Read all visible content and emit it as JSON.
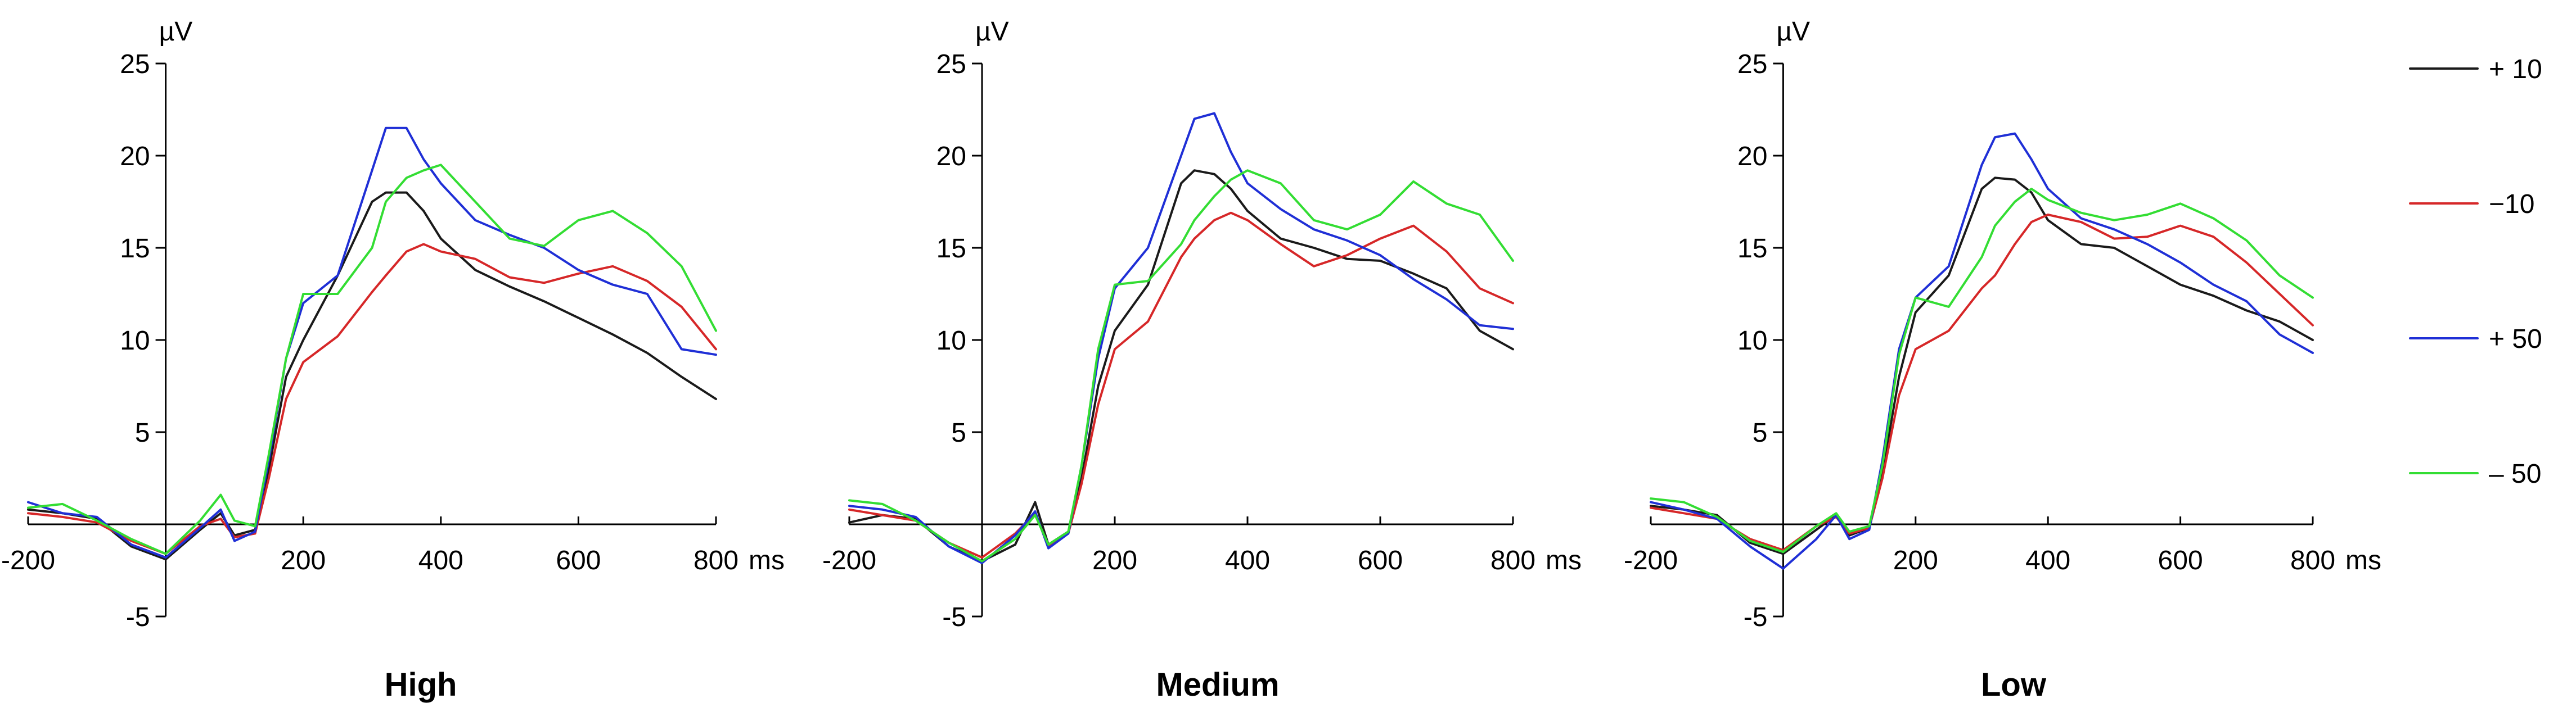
{
  "colors": {
    "plus_10": "#1a1a1a",
    "minus_10": "#d62728",
    "plus_50": "#1f2fd6",
    "minus_50": "#33dd33"
  },
  "legend": [
    {
      "label": "+ 10",
      "color_key": "plus_10"
    },
    {
      "label": "−10",
      "color_key": "minus_10"
    },
    {
      "label": "+ 50",
      "color_key": "plus_50"
    },
    {
      "label": "– 50",
      "color_key": "minus_50"
    }
  ],
  "chart_data": [
    {
      "type": "line",
      "title": "High",
      "ylabel": "µV",
      "xlabel": "ms",
      "xlim": [
        -200,
        800
      ],
      "ylim": [
        -5,
        25
      ],
      "xticks": [
        "-200",
        "200",
        "400",
        "600",
        "800"
      ],
      "yticks": [
        "25",
        "20",
        "15",
        "10",
        "5",
        "-5"
      ],
      "series": [
        {
          "name": "+ 10",
          "color_key": "plus_10",
          "x": [
            -200,
            -150,
            -100,
            -50,
            0,
            50,
            80,
            100,
            130,
            150,
            175,
            200,
            250,
            300,
            320,
            350,
            375,
            400,
            450,
            500,
            550,
            600,
            650,
            700,
            750,
            800
          ],
          "y": [
            0.8,
            0.6,
            0.3,
            -1.2,
            -1.9,
            -0.3,
            0.6,
            -0.6,
            -0.3,
            3,
            8,
            10,
            13.5,
            17.5,
            18,
            18,
            17,
            15.5,
            13.8,
            12.9,
            12.1,
            11.2,
            10.3,
            9.3,
            8,
            6.8
          ]
        },
        {
          "name": "−10",
          "color_key": "minus_10",
          "x": [
            -200,
            -150,
            -100,
            -50,
            0,
            50,
            80,
            100,
            130,
            150,
            175,
            200,
            250,
            300,
            320,
            350,
            375,
            400,
            450,
            500,
            550,
            600,
            650,
            700,
            750,
            800
          ],
          "y": [
            0.6,
            0.4,
            0.1,
            -0.9,
            -1.6,
            -0.1,
            0.3,
            -0.7,
            -0.5,
            2.5,
            6.8,
            8.8,
            10.2,
            12.6,
            13.5,
            14.8,
            15.2,
            14.8,
            14.4,
            13.4,
            13.1,
            13.6,
            14,
            13.2,
            11.8,
            9.5
          ]
        },
        {
          "name": "+ 50",
          "color_key": "plus_50",
          "x": [
            -200,
            -150,
            -100,
            -50,
            0,
            50,
            80,
            100,
            130,
            150,
            175,
            200,
            250,
            300,
            320,
            350,
            375,
            400,
            450,
            500,
            550,
            600,
            650,
            700,
            750,
            800
          ],
          "y": [
            1.2,
            0.6,
            0.4,
            -1.1,
            -1.8,
            -0.2,
            0.8,
            -0.9,
            -0.4,
            3.5,
            9,
            12,
            13.5,
            19.2,
            21.5,
            21.5,
            19.8,
            18.5,
            16.5,
            15.7,
            15,
            13.8,
            13,
            12.5,
            9.5,
            9.2
          ]
        },
        {
          "name": "– 50",
          "color_key": "minus_50",
          "x": [
            -200,
            -150,
            -100,
            -50,
            0,
            50,
            80,
            100,
            130,
            150,
            175,
            200,
            250,
            300,
            320,
            350,
            375,
            400,
            450,
            500,
            550,
            600,
            650,
            700,
            750,
            800
          ],
          "y": [
            0.9,
            1.1,
            0.2,
            -0.8,
            -1.6,
            0.2,
            1.6,
            0.2,
            -0.1,
            3.8,
            9,
            12.5,
            12.5,
            15,
            17.5,
            18.8,
            19.2,
            19.5,
            17.5,
            15.5,
            15.1,
            16.5,
            17,
            15.8,
            14,
            10.5
          ]
        }
      ]
    },
    {
      "type": "line",
      "title": "Medium",
      "ylabel": "µV",
      "xlabel": "ms",
      "xlim": [
        -200,
        800
      ],
      "ylim": [
        -5,
        25
      ],
      "xticks": [
        "-200",
        "200",
        "400",
        "600",
        "800"
      ],
      "yticks": [
        "25",
        "20",
        "15",
        "10",
        "5",
        "-5"
      ],
      "series": [
        {
          "name": "+ 10",
          "color_key": "plus_10",
          "x": [
            -200,
            -150,
            -100,
            -50,
            0,
            50,
            80,
            100,
            130,
            150,
            175,
            200,
            250,
            300,
            320,
            350,
            375,
            400,
            450,
            500,
            550,
            600,
            650,
            700,
            750,
            800
          ],
          "y": [
            0.1,
            0.5,
            0.3,
            -1.2,
            -2,
            -1.1,
            1.2,
            -1.1,
            -0.4,
            2.5,
            7.5,
            10.5,
            13,
            18.5,
            19.2,
            19,
            18.2,
            17,
            15.5,
            15,
            14.4,
            14.3,
            13.6,
            12.8,
            10.5,
            9.5
          ]
        },
        {
          "name": "−10",
          "color_key": "minus_10",
          "x": [
            -200,
            -150,
            -100,
            -50,
            0,
            50,
            80,
            100,
            130,
            150,
            175,
            200,
            250,
            300,
            320,
            350,
            375,
            400,
            450,
            500,
            550,
            600,
            650,
            700,
            750,
            800
          ],
          "y": [
            0.8,
            0.5,
            0.2,
            -1,
            -1.8,
            -0.5,
            0.6,
            -1.2,
            -0.5,
            2.2,
            6.5,
            9.5,
            11,
            14.5,
            15.5,
            16.5,
            16.9,
            16.5,
            15.2,
            14,
            14.6,
            15.5,
            16.2,
            14.8,
            12.8,
            12
          ]
        },
        {
          "name": "+ 50",
          "color_key": "plus_50",
          "x": [
            -200,
            -150,
            -100,
            -50,
            0,
            50,
            80,
            100,
            130,
            150,
            175,
            200,
            250,
            300,
            320,
            350,
            375,
            400,
            450,
            500,
            550,
            600,
            650,
            700,
            750,
            800
          ],
          "y": [
            1,
            0.8,
            0.4,
            -1.2,
            -2.1,
            -0.6,
            0.7,
            -1.3,
            -0.5,
            3.2,
            9,
            12.8,
            15,
            20,
            22,
            22.3,
            20.2,
            18.5,
            17.1,
            16,
            15.4,
            14.6,
            13.3,
            12.2,
            10.8,
            10.6
          ]
        },
        {
          "name": "– 50",
          "color_key": "minus_50",
          "x": [
            -200,
            -150,
            -100,
            -50,
            0,
            50,
            80,
            100,
            130,
            150,
            175,
            200,
            250,
            300,
            320,
            350,
            375,
            400,
            450,
            500,
            550,
            600,
            650,
            700,
            750,
            800
          ],
          "y": [
            1.3,
            1.1,
            0.2,
            -1,
            -2,
            -0.8,
            0.5,
            -1.1,
            -0.4,
            3.2,
            9.5,
            13,
            13.2,
            15.2,
            16.5,
            17.8,
            18.7,
            19.2,
            18.5,
            16.5,
            16,
            16.8,
            18.6,
            17.4,
            16.8,
            14.3
          ]
        }
      ]
    },
    {
      "type": "line",
      "title": "Low",
      "ylabel": "µV",
      "xlabel": "ms",
      "xlim": [
        -200,
        800
      ],
      "ylim": [
        -5,
        25
      ],
      "xticks": [
        "-200",
        "200",
        "400",
        "600",
        "800"
      ],
      "yticks": [
        "25",
        "20",
        "15",
        "10",
        "5",
        "-5"
      ],
      "series": [
        {
          "name": "+ 10",
          "color_key": "plus_10",
          "x": [
            -200,
            -150,
            -100,
            -50,
            0,
            50,
            80,
            100,
            130,
            150,
            175,
            200,
            250,
            300,
            320,
            350,
            375,
            400,
            450,
            500,
            550,
            600,
            650,
            700,
            750,
            800
          ],
          "y": [
            1,
            0.8,
            0.5,
            -1,
            -1.6,
            -0.3,
            0.5,
            -0.6,
            -0.2,
            2.8,
            8,
            11.5,
            13.5,
            18.2,
            18.8,
            18.7,
            18,
            16.5,
            15.2,
            15,
            14,
            13,
            12.4,
            11.6,
            11,
            10
          ]
        },
        {
          "name": "−10",
          "color_key": "minus_10",
          "x": [
            -200,
            -150,
            -100,
            -50,
            0,
            50,
            80,
            100,
            130,
            150,
            175,
            200,
            250,
            300,
            320,
            350,
            375,
            400,
            450,
            500,
            550,
            600,
            650,
            700,
            750,
            800
          ],
          "y": [
            0.9,
            0.6,
            0.3,
            -0.8,
            -1.4,
            -0.1,
            0.4,
            -0.5,
            -0.2,
            2.5,
            7,
            9.5,
            10.5,
            12.8,
            13.5,
            15.2,
            16.4,
            16.8,
            16.4,
            15.5,
            15.6,
            16.2,
            15.6,
            14.2,
            12.5,
            10.8
          ]
        },
        {
          "name": "+ 50",
          "color_key": "plus_50",
          "x": [
            -200,
            -150,
            -100,
            -50,
            0,
            50,
            80,
            100,
            130,
            150,
            175,
            200,
            250,
            300,
            320,
            350,
            375,
            400,
            450,
            500,
            550,
            600,
            650,
            700,
            750,
            800
          ],
          "y": [
            1.2,
            0.8,
            0.3,
            -1.2,
            -2.4,
            -0.8,
            0.5,
            -0.8,
            -0.3,
            3.5,
            9.5,
            12.3,
            14,
            19.5,
            21,
            21.2,
            19.8,
            18.2,
            16.6,
            16,
            15.2,
            14.2,
            13,
            12.1,
            10.3,
            9.3
          ]
        },
        {
          "name": "– 50",
          "color_key": "minus_50",
          "x": [
            -200,
            -150,
            -100,
            -50,
            0,
            50,
            80,
            100,
            130,
            150,
            175,
            200,
            250,
            300,
            320,
            350,
            375,
            400,
            450,
            500,
            550,
            600,
            650,
            700,
            750,
            800
          ],
          "y": [
            1.4,
            1.2,
            0.4,
            -0.9,
            -1.5,
            -0.1,
            0.6,
            -0.4,
            -0.1,
            3.2,
            9.2,
            12.3,
            11.8,
            14.5,
            16.2,
            17.5,
            18.2,
            17.6,
            16.9,
            16.5,
            16.8,
            17.4,
            16.6,
            15.4,
            13.5,
            12.3
          ]
        }
      ]
    }
  ]
}
